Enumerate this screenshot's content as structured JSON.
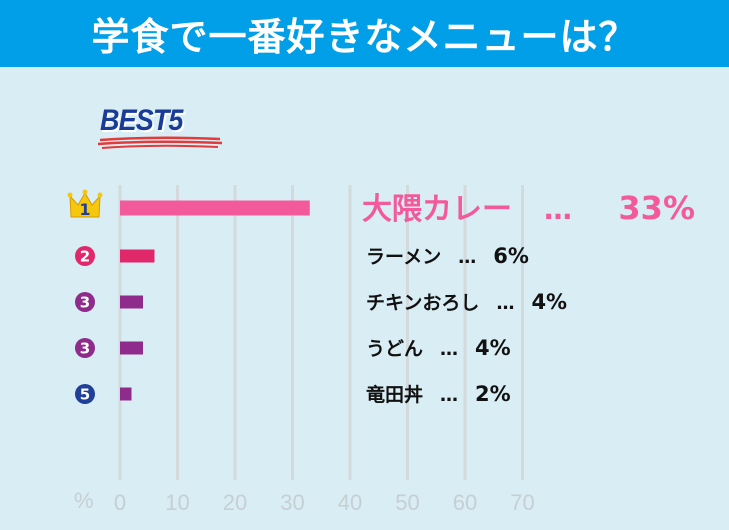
{
  "header": {
    "title": "学食で一番好きなメニューは？"
  },
  "best_label": "BEST5",
  "axis": {
    "unit_label": "%"
  },
  "colors": {
    "header_bg": "#009fe8",
    "background": "#d9edf4",
    "rank1": "#f25a9c",
    "rank2": "#e0286b",
    "rank3": "#8e2b8b",
    "rank5": "#8e2b8b",
    "badge_blue": "#1f3f98",
    "crown": "#f5c80e",
    "grid": "#d4d9dc"
  },
  "chart_data": {
    "type": "bar",
    "orientation": "horizontal",
    "title": "学食で一番好きなメニューは？",
    "subtitle": "BEST5",
    "xlabel": "%",
    "xlim": [
      0,
      70
    ],
    "xticks": [
      0,
      10,
      20,
      30,
      40,
      50,
      60,
      70
    ],
    "grid": true,
    "categories": [
      "大隈カレー",
      "ラーメン",
      "チキンおろし",
      "うどん",
      "竜田丼"
    ],
    "values": [
      33,
      6,
      4,
      4,
      2
    ],
    "ranks": [
      "1",
      "2",
      "3",
      "3",
      "5"
    ],
    "value_labels": [
      "33%",
      "6%",
      "4%",
      "4%",
      "2%"
    ],
    "separator": "…"
  }
}
